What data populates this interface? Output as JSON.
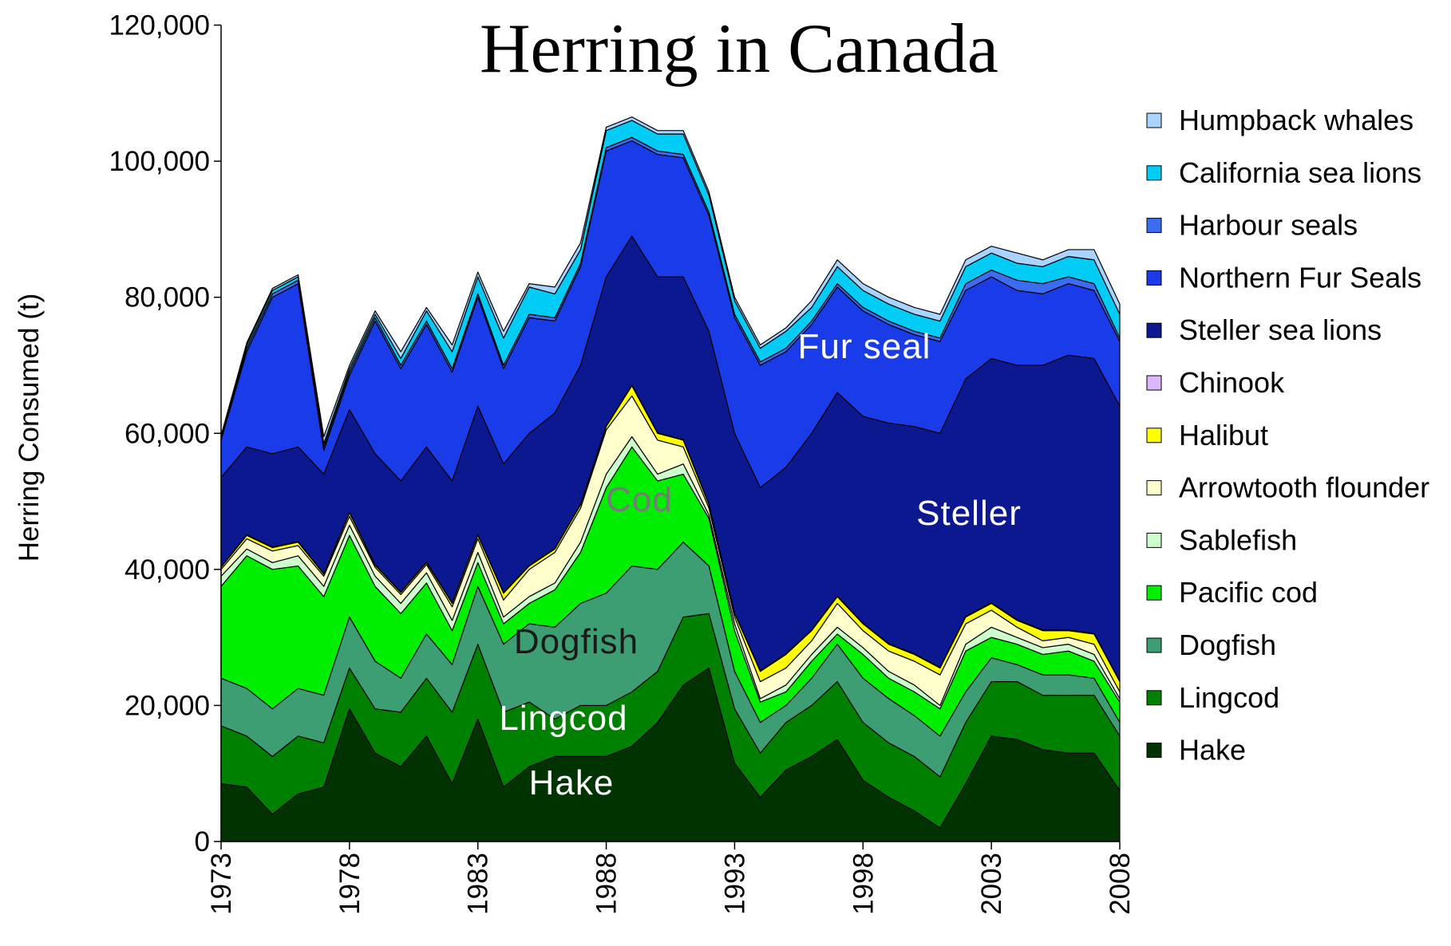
{
  "chart_data": {
    "type": "stacked_area",
    "title": "Herring in Canada",
    "y_label": "Herring Consumed (t)",
    "x": [
      1973,
      1974,
      1975,
      1976,
      1977,
      1978,
      1979,
      1980,
      1981,
      1982,
      1983,
      1984,
      1985,
      1986,
      1987,
      1988,
      1989,
      1990,
      1991,
      1992,
      1993,
      1994,
      1995,
      1996,
      1997,
      1998,
      1999,
      2000,
      2001,
      2002,
      2003,
      2004,
      2005,
      2006,
      2007,
      2008
    ],
    "xlim": [
      1973,
      2008
    ],
    "xticks": [
      1973,
      1978,
      1983,
      1988,
      1993,
      1998,
      2003,
      2008
    ],
    "ylim": [
      0,
      120000
    ],
    "yticks": [
      0,
      {
        "value": 20000,
        "label": "20,000"
      },
      {
        "value": 40000,
        "label": "40,000"
      },
      {
        "value": 60000,
        "label": "60,000"
      },
      {
        "value": 80000,
        "label": "80,000"
      },
      {
        "value": 100000,
        "label": "100,000"
      },
      {
        "value": 120000,
        "label": "120,000"
      }
    ],
    "legend": "right",
    "series": [
      {
        "name": "Hake",
        "color": "#003300",
        "values": [
          8500,
          8000,
          4000,
          7000,
          8000,
          19500,
          13000,
          11000,
          15500,
          8500,
          18000,
          8000,
          11000,
          12500,
          12500,
          12500,
          14000,
          17500,
          23000,
          25500,
          11500,
          6500,
          10500,
          12500,
          15000,
          9000,
          6500,
          4500,
          2000,
          8500,
          15500,
          15000,
          13500,
          13000,
          13000,
          7500
        ]
      },
      {
        "name": "Lingcod",
        "color": "#008000",
        "values": [
          8500,
          7500,
          8500,
          8500,
          6500,
          6000,
          6500,
          8000,
          8500,
          10500,
          11000,
          11000,
          9500,
          5500,
          7500,
          7500,
          8000,
          7500,
          10000,
          8000,
          8000,
          6500,
          7000,
          7500,
          8500,
          8500,
          8000,
          8000,
          7500,
          9000,
          8000,
          8500,
          8000,
          8500,
          8500,
          8000
        ]
      },
      {
        "name": "Dogfish",
        "color": "#3d9e74",
        "values": [
          7000,
          7000,
          7000,
          7000,
          7000,
          7500,
          7000,
          5000,
          6500,
          7000,
          8500,
          10000,
          11500,
          13500,
          15000,
          16500,
          18500,
          15000,
          11000,
          7000,
          5500,
          4500,
          2500,
          4000,
          5500,
          6500,
          6500,
          6000,
          6000,
          4500,
          3500,
          2500,
          3000,
          3000,
          2500,
          2000
        ]
      },
      {
        "name": "Pacific cod",
        "color": "#00ee00",
        "values": [
          13500,
          19500,
          20500,
          18000,
          14500,
          12000,
          11000,
          9500,
          7500,
          5000,
          3500,
          3000,
          3000,
          5500,
          7500,
          15500,
          17500,
          13000,
          10000,
          7000,
          6000,
          3000,
          2000,
          2500,
          1500,
          3500,
          3000,
          3500,
          4000,
          6000,
          3000,
          3000,
          3000,
          3500,
          2500,
          3000
        ]
      },
      {
        "name": "Sablefish",
        "color": "#ccffcc",
        "values": [
          1500,
          1000,
          1000,
          1500,
          1500,
          1500,
          1500,
          1500,
          1500,
          1500,
          1500,
          1000,
          1000,
          1000,
          1500,
          2000,
          1500,
          1000,
          1500,
          500,
          1000,
          500,
          1000,
          1000,
          1000,
          1000,
          1000,
          1000,
          500,
          1000,
          1500,
          1000,
          1000,
          1000,
          1000,
          500
        ]
      },
      {
        "name": "Arrowtooth flounder",
        "color": "#ffffcc",
        "values": [
          1000,
          1500,
          1700,
          1500,
          1500,
          1300,
          1300,
          1300,
          1200,
          2000,
          2000,
          2500,
          4000,
          4500,
          5000,
          6500,
          6000,
          5000,
          2500,
          1000,
          1000,
          2500,
          2500,
          2000,
          3500,
          2500,
          3000,
          3500,
          4500,
          3000,
          2500,
          1500,
          1000,
          1000,
          1500,
          1000
        ]
      },
      {
        "name": "Halibut",
        "color": "#ffff00",
        "values": [
          300,
          500,
          500,
          500,
          300,
          500,
          300,
          300,
          300,
          500,
          500,
          1000,
          500,
          500,
          500,
          500,
          1500,
          1000,
          1000,
          500,
          500,
          1500,
          2000,
          1500,
          1000,
          1000,
          1000,
          1000,
          1000,
          1000,
          1000,
          1000,
          1500,
          1000,
          1500,
          1500
        ]
      },
      {
        "name": "Chinook",
        "color": "#dcb8ff",
        "values": [
          100,
          100,
          100,
          100,
          100,
          100,
          100,
          100,
          100,
          100,
          100,
          100,
          100,
          100,
          100,
          100,
          100,
          100,
          100,
          100,
          100,
          100,
          100,
          100,
          100,
          100,
          100,
          100,
          100,
          100,
          100,
          100,
          100,
          100,
          100,
          100
        ]
      },
      {
        "name": "Steller sea lions",
        "color": "#0b1890",
        "values": [
          13100,
          12900,
          13700,
          13900,
          14600,
          15100,
          16300,
          16300,
          16900,
          17900,
          18900,
          18900,
          19400,
          19900,
          20400,
          21900,
          21900,
          22900,
          23900,
          25400,
          26400,
          26900,
          27400,
          28900,
          29900,
          30400,
          32400,
          33400,
          34400,
          34900,
          35900,
          37400,
          38900,
          40400,
          40400,
          40400
        ]
      },
      {
        "name": "Northern Fur Seals",
        "color": "#1a3ce8",
        "values": [
          5500,
          14000,
          23000,
          24000,
          3500,
          5000,
          19500,
          16500,
          18000,
          16000,
          16000,
          14000,
          17000,
          13500,
          14500,
          18500,
          14000,
          18000,
          17500,
          17000,
          17000,
          18000,
          17000,
          16000,
          15500,
          15500,
          14500,
          13500,
          13500,
          13000,
          12000,
          11000,
          10500,
          10500,
          10000,
          9500
        ]
      },
      {
        "name": "Harbour seals",
        "color": "#3c6cf0",
        "values": [
          300,
          500,
          500,
          500,
          500,
          500,
          500,
          500,
          500,
          500,
          500,
          500,
          500,
          500,
          500,
          500,
          500,
          500,
          500,
          500,
          500,
          500,
          500,
          500,
          500,
          500,
          500,
          500,
          500,
          1000,
          1000,
          1500,
          1500,
          1000,
          1000,
          500
        ]
      },
      {
        "name": "California sea lions",
        "color": "#00ccf5",
        "values": [
          200,
          500,
          500,
          500,
          500,
          500,
          500,
          1000,
          1500,
          2500,
          2500,
          4000,
          4000,
          3500,
          2000,
          2500,
          2500,
          2500,
          3000,
          2500,
          2000,
          2000,
          2500,
          2000,
          2500,
          2500,
          2500,
          2500,
          2500,
          2500,
          2500,
          2500,
          2500,
          3000,
          3500,
          3500
        ]
      },
      {
        "name": "Humpback whales",
        "color": "#a8d4ff",
        "values": [
          200,
          300,
          300,
          300,
          1000,
          500,
          500,
          1000,
          500,
          1000,
          700,
          1000,
          500,
          1000,
          1000,
          500,
          500,
          500,
          500,
          500,
          500,
          500,
          500,
          1000,
          1000,
          1000,
          1000,
          1000,
          1000,
          1000,
          1000,
          1500,
          1000,
          1000,
          1500,
          1500
        ]
      }
    ],
    "annotations": [
      "Fur seal",
      "Steller",
      "Cod",
      "Dogfish",
      "Lingcod",
      "Hake"
    ]
  }
}
